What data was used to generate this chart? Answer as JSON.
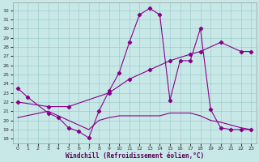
{
  "xlabel": "Windchill (Refroidissement éolien,°C)",
  "bg_color": "#c8e8e8",
  "grid_color": "#a0cccc",
  "line_color": "#880088",
  "ylim": [
    17.5,
    32.8
  ],
  "xlim": [
    -0.5,
    23.5
  ],
  "yticks": [
    18,
    19,
    20,
    21,
    22,
    23,
    24,
    25,
    26,
    27,
    28,
    29,
    30,
    31,
    32
  ],
  "xticks": [
    0,
    1,
    2,
    3,
    4,
    5,
    6,
    7,
    8,
    9,
    10,
    11,
    12,
    13,
    14,
    15,
    16,
    17,
    18,
    19,
    20,
    21,
    22,
    23
  ],
  "line1_x": [
    0,
    1,
    3,
    4,
    5,
    6,
    7,
    8,
    9,
    10,
    11,
    12,
    13,
    14,
    15,
    16,
    17,
    18,
    19,
    20,
    21,
    22,
    23
  ],
  "line1_y": [
    23.5,
    22.5,
    20.8,
    20.3,
    19.2,
    18.8,
    18.1,
    21.0,
    23.2,
    25.2,
    28.5,
    31.5,
    32.2,
    31.5,
    22.2,
    26.5,
    26.5,
    30.0,
    21.2,
    19.2,
    19.0,
    19.0,
    19.0
  ],
  "line2_x": [
    0,
    3,
    5,
    9,
    11,
    13,
    15,
    17,
    18,
    20,
    22,
    23
  ],
  "line2_y": [
    22.0,
    21.5,
    21.5,
    23.0,
    24.5,
    25.5,
    26.5,
    27.2,
    27.5,
    28.5,
    27.5,
    27.5
  ],
  "line3_x": [
    0,
    3,
    7,
    8,
    9,
    10,
    11,
    12,
    13,
    14,
    15,
    16,
    17,
    18,
    19,
    20,
    21,
    22,
    23
  ],
  "line3_y": [
    20.3,
    21.0,
    19.0,
    20.0,
    20.3,
    20.5,
    20.5,
    20.5,
    20.5,
    20.5,
    20.8,
    20.8,
    20.8,
    20.5,
    20.0,
    19.8,
    19.5,
    19.2,
    19.0
  ]
}
